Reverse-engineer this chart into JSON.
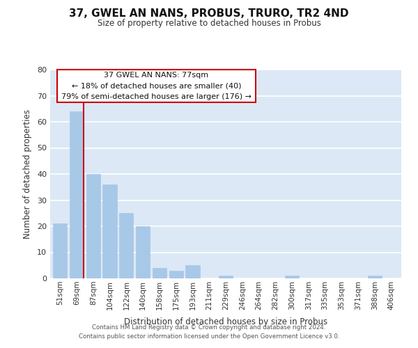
{
  "title": "37, GWEL AN NANS, PROBUS, TRURO, TR2 4ND",
  "subtitle": "Size of property relative to detached houses in Probus",
  "xlabel": "Distribution of detached houses by size in Probus",
  "ylabel": "Number of detached properties",
  "bar_labels": [
    "51sqm",
    "69sqm",
    "87sqm",
    "104sqm",
    "122sqm",
    "140sqm",
    "158sqm",
    "175sqm",
    "193sqm",
    "211sqm",
    "229sqm",
    "246sqm",
    "264sqm",
    "282sqm",
    "300sqm",
    "317sqm",
    "335sqm",
    "353sqm",
    "371sqm",
    "388sqm",
    "406sqm"
  ],
  "bar_values": [
    21,
    64,
    40,
    36,
    25,
    20,
    4,
    3,
    5,
    0,
    1,
    0,
    0,
    0,
    1,
    0,
    0,
    0,
    0,
    1,
    0
  ],
  "bar_color": "#a8c8e8",
  "marker_color": "#cc0000",
  "ylim": [
    0,
    80
  ],
  "yticks": [
    0,
    10,
    20,
    30,
    40,
    50,
    60,
    70,
    80
  ],
  "marker_label": "37 GWEL AN NANS: 77sqm",
  "annotation_line1": "← 18% of detached houses are smaller (40)",
  "annotation_line2": "79% of semi-detached houses are larger (176) →",
  "box_color": "#cc0000",
  "background_color": "#dce8f5",
  "footer_line1": "Contains HM Land Registry data © Crown copyright and database right 2024.",
  "footer_line2": "Contains public sector information licensed under the Open Government Licence v3.0."
}
